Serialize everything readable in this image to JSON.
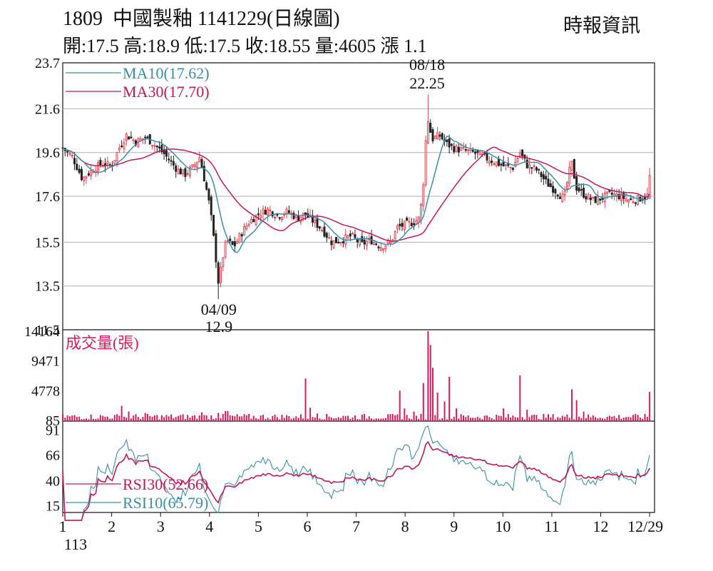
{
  "header": {
    "title": "1809  中國製釉 1141229(日線圖)",
    "source": "時報資訊",
    "quote": "開:17.5 高:18.9 低:17.5 收:18.55 量:4605 漲 1.1"
  },
  "colors": {
    "up": "#e8424f",
    "down": "#222222",
    "ma10": "#3a8fa8",
    "ma30": "#c2185b",
    "volume": "#d81b60",
    "rsi30": "#c2185b",
    "rsi10": "#3a8fa8",
    "grid": "#b0b0b0"
  },
  "chart_data": [
    {
      "type": "candlestick",
      "panel": "price",
      "ylim": [
        11.5,
        23.7
      ],
      "yticks": [
        "23.7",
        "21.6",
        "19.6",
        "17.6",
        "15.5",
        "13.5",
        "11.5"
      ],
      "legend": [
        "MA10(17.62)",
        "MA30(17.70)"
      ],
      "annotations": [
        {
          "date": "08/18",
          "value": "22.25",
          "month_pos": 8.45,
          "price": 22.25,
          "kind": "high"
        },
        {
          "date": "04/09",
          "value": "12.9",
          "month_pos": 4.19,
          "price": 12.9,
          "kind": "low"
        }
      ],
      "close_anchors": [
        [
          1.0,
          19.8
        ],
        [
          1.2,
          19.4
        ],
        [
          1.4,
          18.4
        ],
        [
          1.6,
          18.8
        ],
        [
          1.8,
          19.1
        ],
        [
          2.0,
          19.0
        ],
        [
          2.15,
          19.8
        ],
        [
          2.3,
          20.4
        ],
        [
          2.5,
          20.1
        ],
        [
          2.7,
          20.3
        ],
        [
          2.9,
          19.9
        ],
        [
          3.05,
          19.6
        ],
        [
          3.2,
          19.2
        ],
        [
          3.35,
          18.8
        ],
        [
          3.5,
          18.6
        ],
        [
          3.65,
          18.9
        ],
        [
          3.8,
          19.4
        ],
        [
          3.95,
          17.8
        ],
        [
          4.0,
          17.2
        ],
        [
          4.05,
          16.4
        ],
        [
          4.12,
          15.0
        ],
        [
          4.19,
          13.5
        ],
        [
          4.25,
          14.6
        ],
        [
          4.35,
          15.6
        ],
        [
          4.5,
          15.3
        ],
        [
          4.65,
          15.9
        ],
        [
          4.8,
          16.4
        ],
        [
          5.0,
          16.8
        ],
        [
          5.2,
          17.0
        ],
        [
          5.4,
          16.7
        ],
        [
          5.6,
          16.9
        ],
        [
          5.8,
          16.6
        ],
        [
          5.95,
          16.8
        ],
        [
          6.1,
          16.5
        ],
        [
          6.3,
          16.1
        ],
        [
          6.5,
          15.5
        ],
        [
          6.7,
          15.6
        ],
        [
          6.9,
          15.8
        ],
        [
          7.1,
          15.4
        ],
        [
          7.3,
          15.6
        ],
        [
          7.5,
          15.3
        ],
        [
          7.7,
          15.5
        ],
        [
          7.85,
          16.2
        ],
        [
          8.0,
          16.3
        ],
        [
          8.15,
          16.4
        ],
        [
          8.3,
          16.6
        ],
        [
          8.38,
          18.4
        ],
        [
          8.45,
          21.3
        ],
        [
          8.55,
          20.2
        ],
        [
          8.7,
          20.4
        ],
        [
          8.85,
          20.0
        ],
        [
          9.0,
          19.8
        ],
        [
          9.2,
          19.7
        ],
        [
          9.4,
          19.6
        ],
        [
          9.6,
          19.4
        ],
        [
          9.8,
          19.2
        ],
        [
          10.0,
          19.0
        ],
        [
          10.2,
          18.9
        ],
        [
          10.35,
          19.6
        ],
        [
          10.5,
          19.0
        ],
        [
          10.7,
          18.8
        ],
        [
          10.9,
          18.2
        ],
        [
          11.05,
          17.9
        ],
        [
          11.25,
          17.5
        ],
        [
          11.4,
          19.2
        ],
        [
          11.5,
          18.0
        ],
        [
          11.7,
          17.6
        ],
        [
          11.85,
          17.4
        ],
        [
          12.0,
          17.5
        ],
        [
          12.2,
          17.7
        ],
        [
          12.4,
          17.6
        ],
        [
          12.6,
          17.4
        ],
        [
          12.8,
          17.5
        ],
        [
          12.95,
          17.6
        ],
        [
          13.0,
          18.55
        ]
      ],
      "ma10_last": 17.62,
      "ma30_last": 17.7
    },
    {
      "type": "bar",
      "panel": "volume",
      "title": "成交量(張)",
      "ylim": [
        0,
        14164
      ],
      "yticks": [
        "14164",
        "9471",
        "4778",
        "85"
      ],
      "spikes": [
        [
          2.2,
          2400
        ],
        [
          2.35,
          1500
        ],
        [
          2.7,
          1300
        ],
        [
          3.85,
          1400
        ],
        [
          4.05,
          900
        ],
        [
          4.2,
          1300
        ],
        [
          4.35,
          1600
        ],
        [
          5.95,
          6700
        ],
        [
          6.05,
          2100
        ],
        [
          6.2,
          1200
        ],
        [
          7.9,
          4800
        ],
        [
          8.0,
          2000
        ],
        [
          8.2,
          1500
        ],
        [
          8.38,
          6000
        ],
        [
          8.45,
          14164
        ],
        [
          8.5,
          12000
        ],
        [
          8.58,
          8400
        ],
        [
          8.65,
          4500
        ],
        [
          8.8,
          3100
        ],
        [
          8.9,
          7000
        ],
        [
          9.05,
          2000
        ],
        [
          10.0,
          2000
        ],
        [
          10.35,
          7200
        ],
        [
          10.5,
          1800
        ],
        [
          11.4,
          5000
        ],
        [
          11.5,
          3300
        ],
        [
          11.65,
          1500
        ],
        [
          13.0,
          4605
        ]
      ]
    },
    {
      "type": "line",
      "panel": "rsi",
      "ylim": [
        8,
        100
      ],
      "yticks": [
        "91",
        "66",
        "40",
        "15"
      ],
      "series": [
        {
          "name": "RSI30(52.66)",
          "last": 52.66
        },
        {
          "name": "RSI10(65.79)",
          "last": 65.79
        }
      ]
    },
    {
      "type": "axis",
      "xlim": [
        1,
        13.1
      ],
      "xticks": [
        "1",
        "2",
        "3",
        "4",
        "5",
        "6",
        "7",
        "8",
        "9",
        "10",
        "11",
        "12",
        "12/29"
      ],
      "year_label": "113"
    }
  ]
}
